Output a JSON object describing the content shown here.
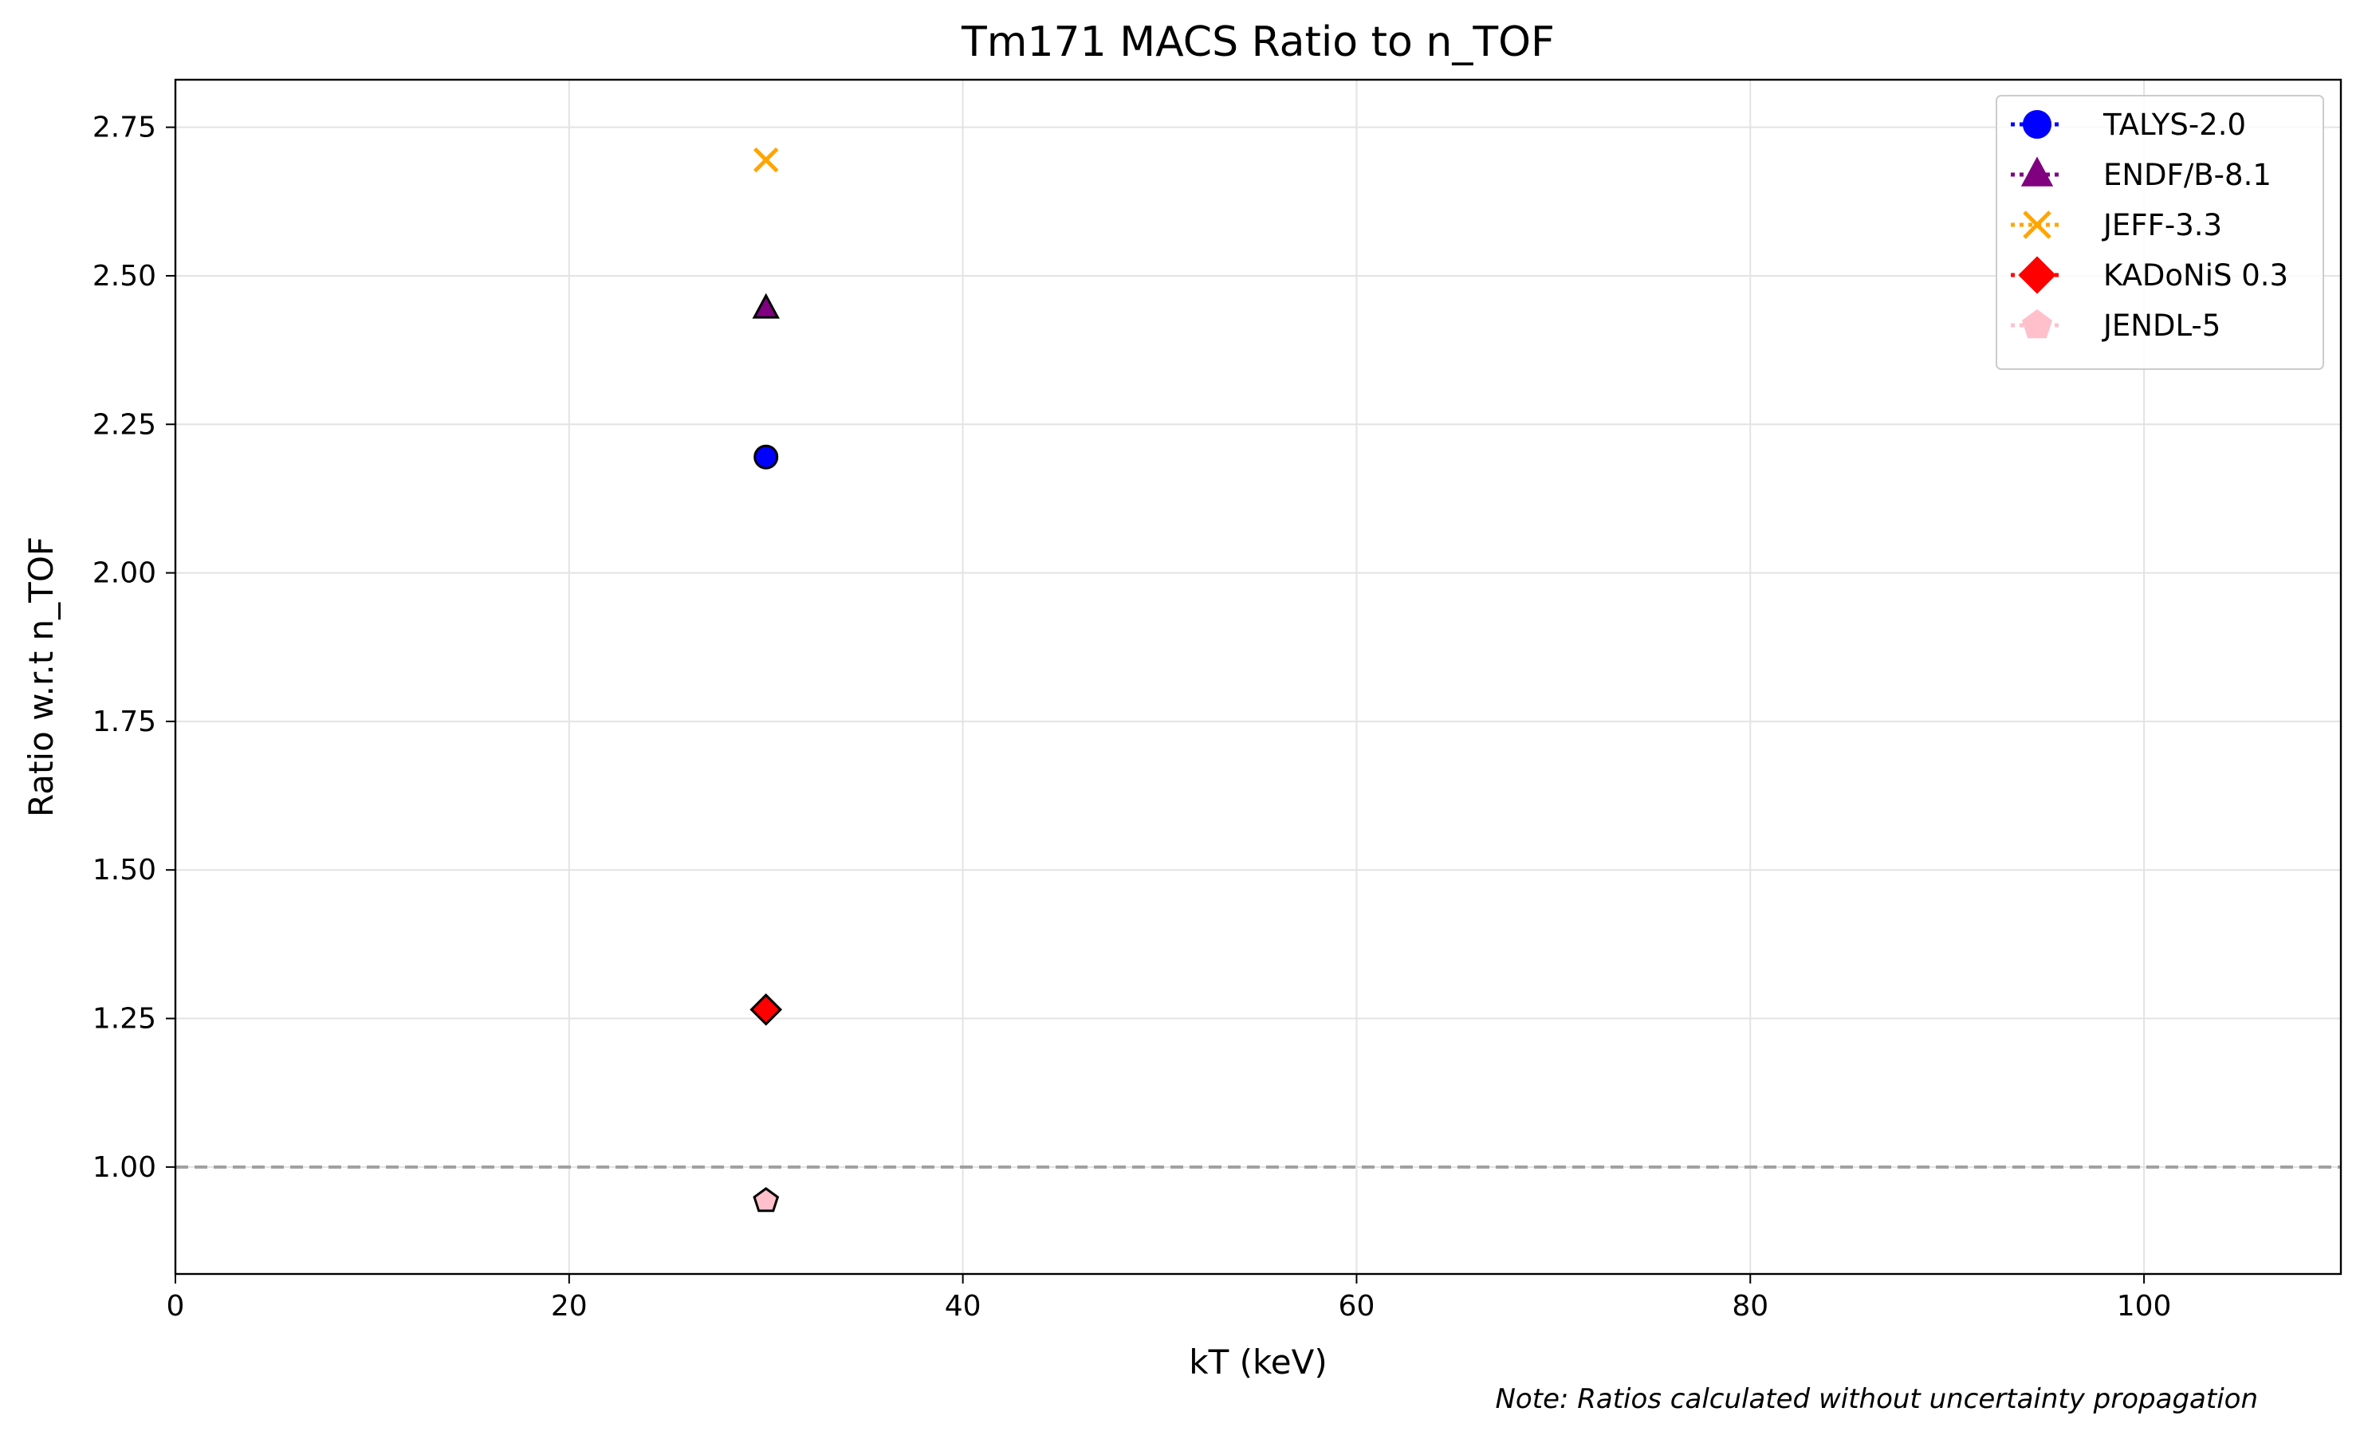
{
  "chart_data": {
    "type": "scatter",
    "title": "Tm171 MACS Ratio to n_TOF",
    "xlabel": "kT (keV)",
    "ylabel": "Ratio w.r.t n_TOF",
    "xlim": [
      0,
      110
    ],
    "ylim": [
      0.82,
      2.83
    ],
    "x_ticks": [
      0,
      20,
      40,
      60,
      80,
      100
    ],
    "y_ticks": [
      1.0,
      1.25,
      1.5,
      1.75,
      2.0,
      2.25,
      2.5,
      2.75
    ],
    "grid": true,
    "legend_position": "top-right",
    "reference_line": {
      "y": 1.0,
      "style": "dashed",
      "color": "#a0a0a0"
    },
    "series": [
      {
        "name": "TALYS-2.0",
        "marker": "circle",
        "color": "#0000ff",
        "x": [
          30
        ],
        "y": [
          2.195
        ]
      },
      {
        "name": "ENDF/B-8.1",
        "marker": "triangle",
        "color": "#800080",
        "x": [
          30
        ],
        "y": [
          2.445
        ]
      },
      {
        "name": "JEFF-3.3",
        "marker": "x",
        "color": "#ffa500",
        "x": [
          30
        ],
        "y": [
          2.695
        ]
      },
      {
        "name": "KADoNiS 0.3",
        "marker": "diamond",
        "color": "#ff0000",
        "x": [
          30
        ],
        "y": [
          1.265
        ]
      },
      {
        "name": "JENDL-5",
        "marker": "pentagon",
        "color": "#ffc0cb",
        "x": [
          30
        ],
        "y": [
          0.943
        ]
      }
    ],
    "note": "Note: Ratios calculated without uncertainty propagation"
  }
}
